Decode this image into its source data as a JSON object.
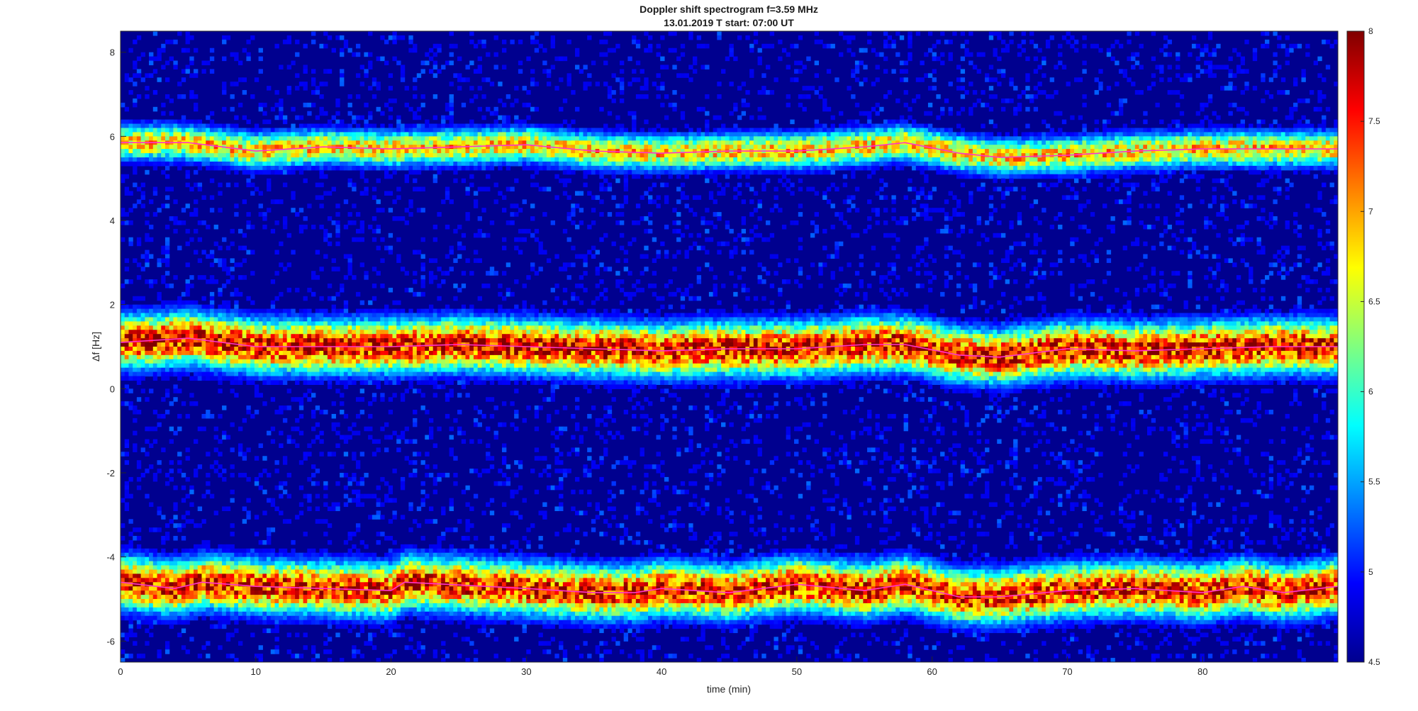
{
  "chart_data": {
    "type": "heatmap",
    "title": "Doppler shift spectrogram f=3.59 MHz",
    "subtitle": "13.01.2019   T start: 07:00 UT",
    "xlabel": "time (min)",
    "ylabel": "Δf [Hz]",
    "xlim": [
      0,
      90
    ],
    "ylim": [
      -6.5,
      8.5
    ],
    "x_ticks": [
      0,
      10,
      20,
      30,
      40,
      50,
      60,
      70,
      80
    ],
    "x_tick_labels": [
      "0",
      "10",
      "20",
      "30",
      "40",
      "50",
      "60",
      "70",
      "80"
    ],
    "y_ticks": [
      -6,
      -4,
      -2,
      0,
      2,
      4,
      6,
      8
    ],
    "y_tick_labels": [
      "-6",
      "-4",
      "-2",
      "0",
      "2",
      "4",
      "6",
      "8"
    ],
    "colorbar": {
      "colormap": "jet",
      "range": [
        4.5,
        8
      ],
      "ticks": [
        4.5,
        5,
        5.5,
        6,
        6.5,
        7,
        7.5,
        8
      ],
      "tick_labels": [
        "4.5",
        "5",
        "5.5",
        "6",
        "6.5",
        "7",
        "7.5",
        "8"
      ]
    },
    "background_color": "#00008f",
    "series": [
      {
        "x": [
          0,
          5,
          10,
          15,
          20,
          25,
          30,
          35,
          40,
          45,
          50,
          55,
          58,
          62,
          65,
          70,
          75,
          80,
          85,
          90
        ],
        "values": [
          5.85,
          5.85,
          5.65,
          5.75,
          5.7,
          5.75,
          5.8,
          5.65,
          5.6,
          5.65,
          5.65,
          5.75,
          5.85,
          5.6,
          5.5,
          5.55,
          5.65,
          5.7,
          5.7,
          5.7
        ],
        "intensity": 6.2
      },
      {
        "x": [
          0,
          5,
          10,
          15,
          20,
          25,
          30,
          35,
          40,
          45,
          50,
          55,
          58,
          62,
          65,
          70,
          75,
          80,
          85,
          90
        ],
        "values": [
          1.1,
          1.2,
          1.0,
          1.0,
          1.0,
          1.05,
          1.0,
          0.95,
          0.9,
          0.95,
          0.95,
          1.05,
          1.05,
          0.8,
          0.75,
          0.95,
          0.9,
          0.95,
          1.0,
          1.0
        ],
        "intensity": 7.1
      },
      {
        "x": [
          0,
          4,
          6,
          10,
          15,
          20,
          21,
          24,
          30,
          35,
          38,
          40,
          45,
          50,
          55,
          58,
          62,
          65,
          70,
          75,
          80,
          83,
          86,
          90
        ],
        "values": [
          -4.6,
          -4.75,
          -4.6,
          -4.7,
          -4.75,
          -4.8,
          -4.6,
          -4.65,
          -4.75,
          -4.85,
          -4.85,
          -4.75,
          -4.85,
          -4.65,
          -4.8,
          -4.65,
          -4.95,
          -4.95,
          -4.8,
          -4.75,
          -4.85,
          -4.7,
          -4.85,
          -4.7
        ],
        "intensity": 7.0
      }
    ]
  }
}
